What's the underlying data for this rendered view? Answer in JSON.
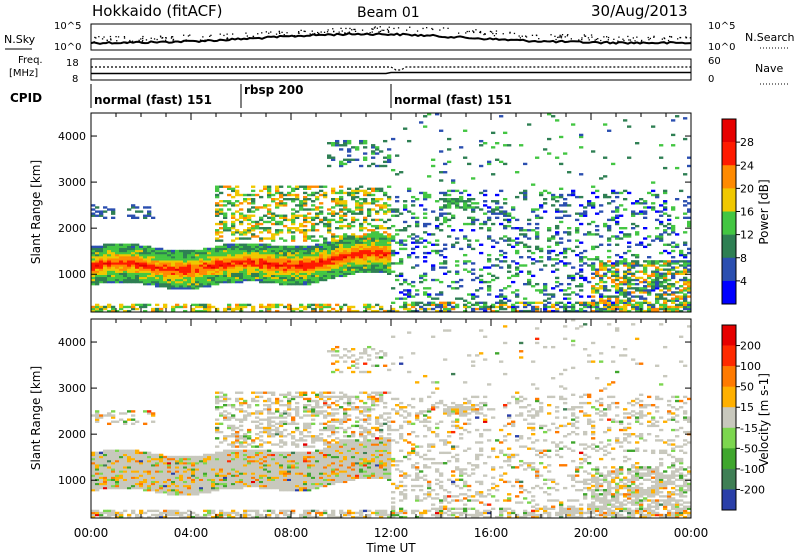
{
  "header": {
    "station": "Hokkaido (fitACF)",
    "beam": "Beam 01",
    "date": "30/Aug/2013"
  },
  "top_panels": {
    "nsky_label": "N.Sky",
    "nsky_ticks": [
      "10^5",
      "10^0"
    ],
    "nsearch_label": "N.Search",
    "nsearch_ticks": [
      "10^5",
      "10^0"
    ],
    "freq_label_1": "Freq.",
    "freq_label_2": "[MHz]",
    "freq_ticks": [
      "18",
      "8"
    ],
    "nave_label": "Nave",
    "nave_ticks": [
      "60",
      "0"
    ],
    "cpid_label": "CPID",
    "cpid_segments": [
      {
        "label": "normal (fast) 151",
        "start_hr": 0,
        "end_hr": 6
      },
      {
        "label": "rbsp 200",
        "start_hr": 6,
        "end_hr": 12
      },
      {
        "label": "normal (fast) 151",
        "start_hr": 12,
        "end_hr": 24
      }
    ]
  },
  "chart_data": [
    {
      "type": "heatmap",
      "name": "Power",
      "ylabel": "Slant Range [km]",
      "xlabel": "Time UT",
      "x_range_hr": [
        0,
        24
      ],
      "y_range_km": [
        180,
        4500
      ],
      "y_ticks": [
        1000,
        2000,
        3000,
        4000
      ],
      "x_ticks": [
        "00:00",
        "04:00",
        "08:00",
        "12:00",
        "16:00",
        "20:00",
        "00:00"
      ],
      "colorbar_label": "Power [dB]",
      "colorbar_ticks": [
        "28",
        "24",
        "20",
        "16",
        "12",
        "8",
        "4"
      ],
      "colors": [
        "#0000ff",
        "#2b4fb0",
        "#2e7f53",
        "#43c642",
        "#f0c800",
        "#ff8a00",
        "#ff1a00",
        "#e60000"
      ]
    },
    {
      "type": "heatmap",
      "name": "Velocity",
      "ylabel": "Slant Range [km]",
      "xlabel": "Time UT",
      "x_range_hr": [
        0,
        24
      ],
      "y_range_km": [
        180,
        4500
      ],
      "y_ticks": [
        1000,
        2000,
        3000,
        4000
      ],
      "x_ticks": [
        "00:00",
        "04:00",
        "08:00",
        "12:00",
        "16:00",
        "20:00",
        "00:00"
      ],
      "colorbar_label": "Velocity [m s-1]",
      "colorbar_ticks": [
        "200",
        "100",
        "50",
        "15",
        "-15",
        "-50",
        "-100",
        "-200"
      ],
      "colors": [
        "#2a3fa8",
        "#3f7f55",
        "#3fa62d",
        "#7cd64f",
        "#c8c8bd",
        "#ffb000",
        "#ff7a00",
        "#ff2a00",
        "#e60000"
      ]
    }
  ],
  "axis": {
    "xlabel": "Time UT"
  }
}
